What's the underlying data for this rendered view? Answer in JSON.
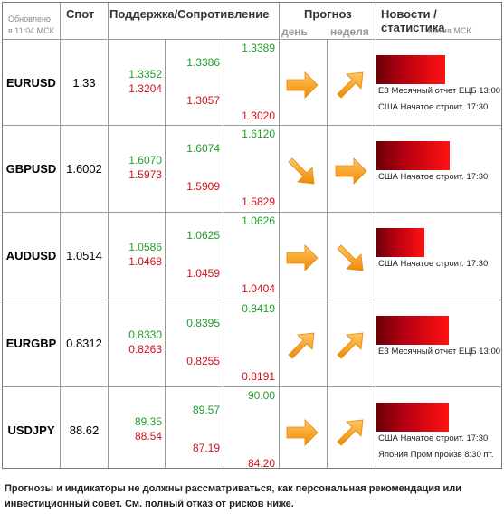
{
  "header": {
    "updated_label": "Обновлено",
    "updated_time": "в 11:04 МСК",
    "spot": "Спот",
    "support_resistance": "Поддержка/Сопротивление",
    "forecast": "Прогноз",
    "day": "день",
    "week": "неделя",
    "news": "Новости / статистика",
    "news_time": "время МСК"
  },
  "rows": [
    {
      "pair": "EURUSD",
      "spot": "1.33",
      "s1_up": "1.3352",
      "s1_dn": "1.3204",
      "s2_up": "1.3386",
      "s2_dn": "1.3057",
      "s3_up": "1.3389",
      "s3_dn": "1.3020",
      "day": "arrow-right-icon",
      "week": "arrow-up-right-icon",
      "bar_level": 0.78,
      "news": [
        "ЕЗ Месячный отчет ЕЦБ 13:00",
        "США Начатое строит. 17:30"
      ]
    },
    {
      "pair": "GBPUSD",
      "spot": "1.6002",
      "s1_up": "1.6070",
      "s1_dn": "1.5973",
      "s2_up": "1.6074",
      "s2_dn": "1.5909",
      "s3_up": "1.6120",
      "s3_dn": "1.5829",
      "day": "arrow-down-right-icon",
      "week": "arrow-right-icon",
      "bar_level": 0.83,
      "news": [
        "США Начатое строит. 17:30"
      ]
    },
    {
      "pair": "AUDUSD",
      "spot": "1.0514",
      "s1_up": "1.0586",
      "s1_dn": "1.0468",
      "s2_up": "1.0625",
      "s2_dn": "1.0459",
      "s3_up": "1.0626",
      "s3_dn": "1.0404",
      "day": "arrow-right-icon",
      "week": "arrow-down-right-icon",
      "bar_level": 0.54,
      "news": [
        "США Начатое строит. 17:30"
      ]
    },
    {
      "pair": "EURGBP",
      "spot": "0.8312",
      "s1_up": "0.8330",
      "s1_dn": "0.8263",
      "s2_up": "0.8395",
      "s2_dn": "0.8255",
      "s3_up": "0.8419",
      "s3_dn": "0.8191",
      "day": "arrow-up-right-icon",
      "week": "arrow-up-right-icon",
      "bar_level": 0.82,
      "news": [
        "ЕЗ Месячный отчет ЕЦБ 13:00"
      ]
    },
    {
      "pair": "USDJPY",
      "spot": "88.62",
      "s1_up": "89.35",
      "s1_dn": "88.54",
      "s2_up": "89.57",
      "s2_dn": "87.19",
      "s3_up": "90.00",
      "s3_dn": "84.20",
      "day": "arrow-right-icon",
      "week": "arrow-up-right-icon",
      "bar_level": 0.82,
      "news": [
        "США Начатое строит. 17:30",
        "Япония Пром произв 8:30 пт."
      ]
    }
  ],
  "colors": {
    "support_green": "#1f9e2b",
    "resistance_red": "#d0101a",
    "arrow_orange": "#f5a623"
  },
  "disclaimer": "Прогнозы и индикаторы не должны рассматриваться, как персональная рекомендация или инвестиционный совет. См. полный отказ от рисков ниже."
}
